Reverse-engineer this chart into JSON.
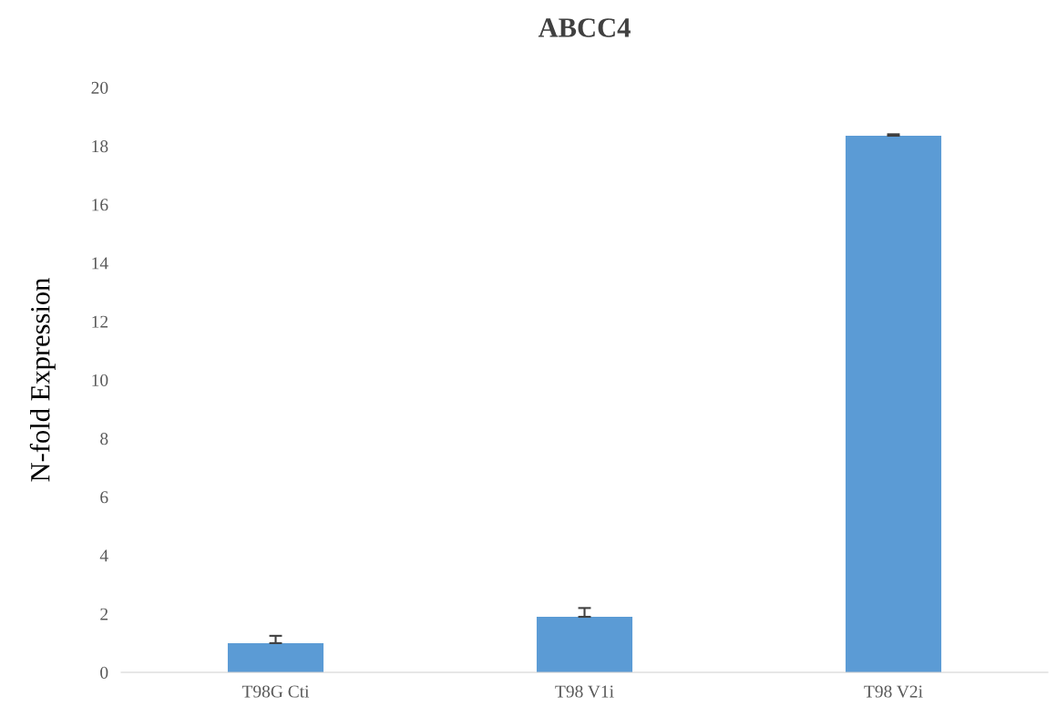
{
  "chart_data": {
    "type": "bar",
    "title": "ABCC4",
    "ylabel": "N-fold Expression",
    "categories": [
      "T98G Cti",
      "T98 V1i",
      "T98 V2i"
    ],
    "values": [
      1.0,
      1.9,
      18.35
    ],
    "errors": [
      [
        1.0,
        1.25
      ],
      [
        1.9,
        2.2
      ],
      [
        18.35,
        18.4
      ]
    ],
    "color": "#5b9bd5",
    "ylim": [
      0,
      20
    ],
    "yticks": [
      0,
      2,
      4,
      6,
      8,
      10,
      12,
      14,
      16,
      18,
      20
    ],
    "grid": false
  }
}
